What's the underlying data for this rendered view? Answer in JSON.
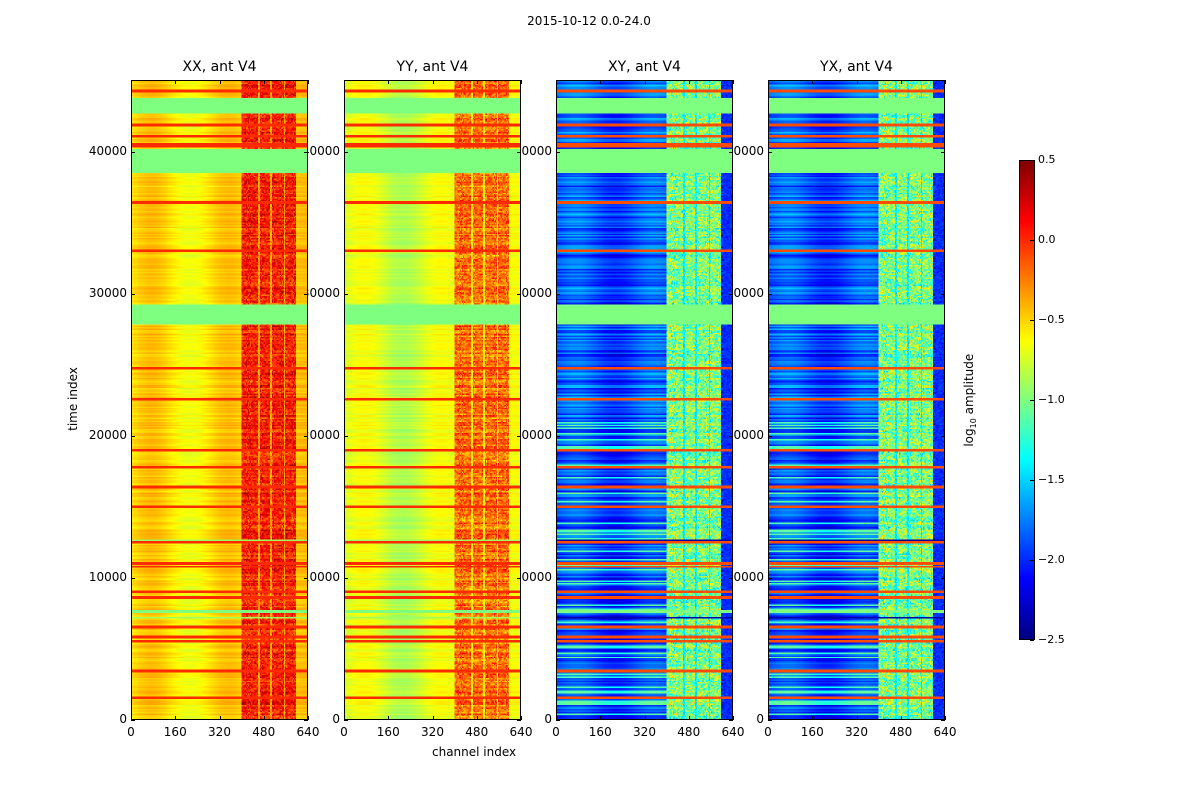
{
  "chart_data": {
    "type": "heatmap",
    "title": "2015-10-12 0.0-24.0",
    "xlabel": "channel index",
    "ylabel": "time index",
    "xlim": [
      0,
      640
    ],
    "ylim": [
      0,
      45100
    ],
    "xticks": [
      "0",
      "160",
      "320",
      "480",
      "640"
    ],
    "yticks": [
      "0",
      "10000",
      "20000",
      "30000",
      "40000"
    ],
    "colormap": "jet",
    "colorbar": {
      "label_main": "log",
      "label_sub": "10",
      "label_rest": " amplitude",
      "range": [
        -2.5,
        0.5
      ],
      "ticks": [
        "0.5",
        "0.0",
        "−0.5",
        "−1.0",
        "−1.5",
        "−2.0",
        "−2.5"
      ],
      "tick_values": [
        0.5,
        0.0,
        -0.5,
        -1.0,
        -1.5,
        -2.0,
        -2.5
      ]
    },
    "panels": [
      {
        "title": "XX, ant V4",
        "base_log_amp": -0.55,
        "rfi_log_amp": 0.05,
        "flag_line_log_amp": 0.0
      },
      {
        "title": "YY, ant V4",
        "base_log_amp": -0.75,
        "rfi_log_amp": -0.2,
        "flag_line_log_amp": 0.0
      },
      {
        "title": "XY, ant V4",
        "base_log_amp": -1.9,
        "rfi_log_amp": -1.0,
        "flag_line_log_amp": -0.1
      },
      {
        "title": "YX, ant V4",
        "base_log_amp": -1.9,
        "rfi_log_amp": -1.0,
        "flag_line_log_amp": -0.1
      }
    ],
    "flagged_time_ranges": [
      [
        42800,
        43900
      ],
      [
        38600,
        40300
      ],
      [
        27900,
        29300
      ],
      [
        7450,
        7700
      ]
    ],
    "flagged_value": -1.0,
    "bright_time_rows": [
      44400,
      43000,
      42000,
      41200,
      40600,
      40450,
      36500,
      33100,
      24800,
      22600,
      19000,
      17800,
      16400,
      15000,
      12500,
      11000,
      10750,
      9000,
      8600,
      6500,
      5800,
      5500,
      3400,
      1500
    ],
    "dark_time_rows": [
      41500,
      38500,
      33000,
      29400,
      25500,
      16200,
      12700,
      7200
    ],
    "rfi_channel_ranges": [
      [
        400,
        460
      ],
      [
        470,
        505
      ],
      [
        512,
        555
      ],
      [
        562,
        600
      ]
    ]
  }
}
